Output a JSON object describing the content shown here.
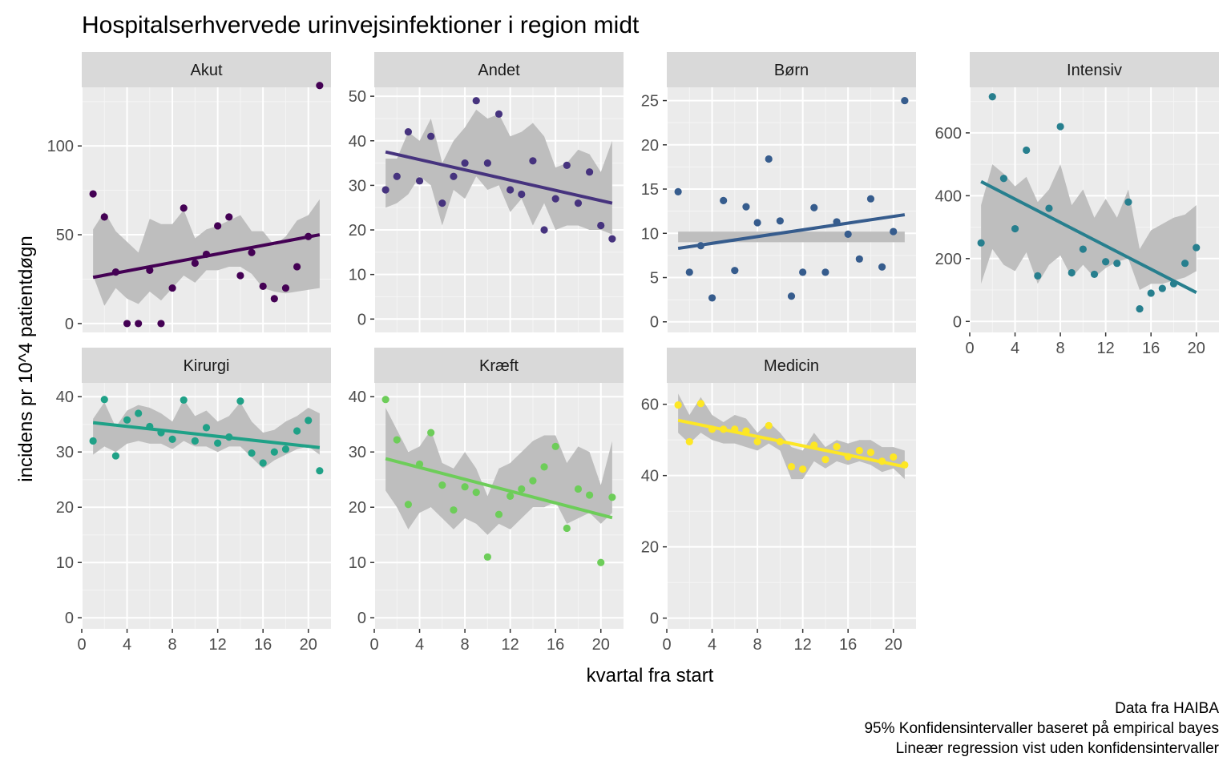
{
  "chart_data": {
    "type": "scatter",
    "title": "Hospitalserhvervede urinvejsinfektioner i region midt",
    "xlabel": "kvartal fra start",
    "ylabel": "incidens pr 10^4 patientdøgn",
    "caption": [
      "Data fra HAIBA",
      "95% Konfidensintervaller baseret på empirical bayes",
      "Lineær regression vist uden konfidensintervaller"
    ],
    "grid": true,
    "legend": "none",
    "facets": [
      {
        "name": "Akut",
        "color": "#440154",
        "xlim": [
          0,
          22
        ],
        "ylim": [
          -5,
          133
        ],
        "x_ticks": [
          0,
          4,
          8,
          12,
          16,
          20
        ],
        "y_ticks": [
          0,
          50,
          100
        ],
        "x": [
          1,
          2,
          3,
          4,
          5,
          6,
          7,
          8,
          9,
          10,
          11,
          12,
          13,
          14,
          15,
          16,
          17,
          18,
          19,
          20,
          21
        ],
        "y": [
          73,
          60,
          29,
          0,
          0,
          30,
          0,
          20,
          65,
          34,
          39,
          55,
          60,
          27,
          40,
          21,
          14,
          20,
          32,
          49,
          134
        ],
        "ci_low": [
          27,
          10,
          20,
          14,
          11,
          18,
          13,
          20,
          27,
          23,
          30,
          30,
          32,
          32,
          28,
          20,
          18,
          17,
          18,
          19,
          20
        ],
        "ci_high": [
          53,
          63,
          52,
          46,
          40,
          59,
          56,
          56,
          64,
          48,
          53,
          55,
          58,
          61,
          52,
          52,
          44,
          49,
          58,
          61,
          70
        ],
        "trend": [
          [
            1,
            26
          ],
          [
            21,
            50
          ]
        ]
      },
      {
        "name": "Andet",
        "color": "#46337E",
        "xlim": [
          0,
          22
        ],
        "ylim": [
          -3,
          52
        ],
        "x_ticks": [
          0,
          4,
          8,
          12,
          16,
          20
        ],
        "y_ticks": [
          0,
          10,
          20,
          30,
          40,
          50
        ],
        "x": [
          1,
          2,
          3,
          4,
          5,
          6,
          7,
          8,
          9,
          10,
          11,
          12,
          13,
          14,
          15,
          16,
          17,
          18,
          19,
          20,
          21
        ],
        "y": [
          29,
          32,
          42,
          31,
          41,
          26,
          32,
          35,
          49,
          35,
          46,
          29,
          28,
          35.5,
          20,
          27,
          34.5,
          26,
          33,
          21,
          18
        ],
        "ci_low": [
          25,
          26,
          28,
          32,
          30,
          21,
          29,
          27,
          32,
          29,
          30,
          24,
          27,
          21,
          26,
          20,
          21,
          21,
          20,
          20,
          19
        ],
        "ci_high": [
          36,
          36,
          42,
          40,
          45,
          35,
          40,
          43,
          47,
          45,
          46,
          41,
          42,
          44,
          41,
          34,
          35,
          38,
          37,
          33,
          40
        ],
        "trend": [
          [
            1,
            37.5
          ],
          [
            21,
            26
          ]
        ]
      },
      {
        "name": "Børn",
        "color": "#365C8D",
        "xlim": [
          0,
          22
        ],
        "ylim": [
          -1.2,
          26.5
        ],
        "x_ticks": [
          0,
          4,
          8,
          12,
          16,
          20
        ],
        "y_ticks": [
          0,
          5,
          10,
          15,
          20,
          25
        ],
        "x": [
          1,
          2,
          3,
          4,
          5,
          6,
          7,
          8,
          9,
          10,
          11,
          12,
          13,
          14,
          15,
          16,
          17,
          18,
          19,
          20,
          21
        ],
        "y": [
          14.7,
          5.6,
          8.6,
          2.7,
          13.7,
          5.8,
          13,
          11.2,
          18.4,
          11.4,
          2.9,
          5.6,
          12.9,
          5.6,
          11.3,
          9.9,
          7.1,
          13.9,
          6.2,
          10.2,
          25
        ],
        "ci_low": [
          9,
          9,
          9,
          9,
          9,
          9,
          9,
          9,
          9,
          9,
          9,
          9,
          9,
          9,
          9,
          9,
          9,
          9,
          9,
          9,
          9
        ],
        "ci_high": [
          10.2,
          10.2,
          10.2,
          10.2,
          10.2,
          10.2,
          10.2,
          10.2,
          10.2,
          10.2,
          10.2,
          10.2,
          10.2,
          10.2,
          10.2,
          10.2,
          10.2,
          10.2,
          10.2,
          10.2,
          10.2
        ],
        "trend": [
          [
            1,
            8.3
          ],
          [
            21,
            12.1
          ]
        ]
      },
      {
        "name": "Intensiv",
        "color": "#277F8E",
        "xlim": [
          0,
          22
        ],
        "ylim": [
          -35,
          745
        ],
        "x_ticks": [
          0,
          4,
          8,
          12,
          16,
          20
        ],
        "y_ticks": [
          0,
          200,
          400,
          600
        ],
        "x": [
          1,
          2,
          3,
          4,
          5,
          6,
          7,
          8,
          9,
          10,
          11,
          12,
          13,
          14,
          15,
          16,
          17,
          18,
          19,
          20
        ],
        "y": [
          250,
          715,
          455,
          295,
          545,
          145,
          360,
          620,
          155,
          230,
          150,
          190,
          185,
          380,
          40,
          90,
          105,
          120,
          185,
          235
        ],
        "ci_low": [
          120,
          230,
          180,
          160,
          220,
          120,
          180,
          210,
          140,
          180,
          140,
          170,
          190,
          200,
          100,
          120,
          120,
          130,
          140,
          160
        ],
        "ci_high": [
          370,
          500,
          470,
          430,
          460,
          380,
          420,
          500,
          370,
          420,
          330,
          390,
          330,
          420,
          230,
          290,
          310,
          330,
          340,
          370
        ],
        "trend": [
          [
            1,
            445
          ],
          [
            20,
            92
          ]
        ]
      },
      {
        "name": "Kirurgi",
        "color": "#1FA187",
        "xlim": [
          0,
          22
        ],
        "ylim": [
          -2,
          42.5
        ],
        "x_ticks": [
          0,
          4,
          8,
          12,
          16,
          20
        ],
        "y_ticks": [
          0,
          10,
          20,
          30,
          40
        ],
        "x": [
          1,
          2,
          3,
          4,
          5,
          6,
          7,
          8,
          9,
          10,
          11,
          12,
          13,
          14,
          15,
          16,
          17,
          18,
          19,
          20,
          21
        ],
        "y": [
          32,
          39.5,
          29.3,
          35.8,
          37,
          34.6,
          33.5,
          32.3,
          39.4,
          32,
          34.4,
          31.6,
          32.7,
          39.2,
          29.8,
          28,
          30,
          30.5,
          33.8,
          35.7,
          26.6
        ],
        "ci_low": [
          29.5,
          31,
          30,
          31.5,
          32,
          31.5,
          31.5,
          30.5,
          32,
          31,
          31,
          30,
          31,
          31,
          29,
          27,
          28.5,
          29.5,
          30.5,
          31,
          29.5
        ],
        "ci_high": [
          36,
          39,
          34.5,
          37.5,
          38.5,
          38,
          37,
          35.5,
          39.5,
          36.5,
          37.5,
          35.5,
          36.5,
          39,
          35.5,
          33.5,
          34,
          35.5,
          36.5,
          38,
          37
        ],
        "trend": [
          [
            1,
            35.3
          ],
          [
            21,
            30.8
          ]
        ]
      },
      {
        "name": "Kræft",
        "color": "#6DCD59",
        "xlim": [
          0,
          22
        ],
        "ylim": [
          -2,
          42.5
        ],
        "x_ticks": [
          0,
          4,
          8,
          12,
          16,
          20
        ],
        "y_ticks": [
          0,
          10,
          20,
          30,
          40
        ],
        "x": [
          1,
          2,
          3,
          4,
          5,
          6,
          7,
          8,
          9,
          10,
          11,
          12,
          13,
          14,
          15,
          16,
          17,
          18,
          19,
          20,
          21
        ],
        "y": [
          39.5,
          32.2,
          20.5,
          27.8,
          33.5,
          24,
          19.5,
          23.7,
          22.7,
          11,
          18.7,
          22,
          23.3,
          24.8,
          27.3,
          31,
          16.2,
          23.3,
          22.2,
          10,
          21.8
        ],
        "ci_low": [
          23,
          20,
          16,
          19,
          20,
          18,
          16,
          18,
          17,
          15,
          17,
          16,
          18,
          20,
          20,
          21,
          17,
          18,
          19,
          17,
          19
        ],
        "ci_high": [
          38,
          34,
          30,
          31,
          34,
          28,
          27,
          30,
          27,
          22,
          27,
          28,
          30,
          32,
          33,
          33,
          28,
          31,
          30,
          24,
          32
        ],
        "trend": [
          [
            1,
            28.8
          ],
          [
            21,
            18.1
          ]
        ]
      },
      {
        "name": "Medicin",
        "color": "#FDE725",
        "xlim": [
          0,
          22
        ],
        "ylim": [
          -3,
          66
        ],
        "x_ticks": [
          0,
          4,
          8,
          12,
          16,
          20
        ],
        "y_ticks": [
          0,
          20,
          40,
          60
        ],
        "x": [
          1,
          2,
          3,
          4,
          5,
          6,
          7,
          8,
          9,
          10,
          11,
          12,
          13,
          14,
          15,
          16,
          17,
          18,
          19,
          20,
          21
        ],
        "y": [
          59.8,
          49.5,
          60.2,
          53,
          53,
          53,
          52.5,
          49.5,
          54,
          49.5,
          42.5,
          41.8,
          48.5,
          44.5,
          48.1,
          45.3,
          47,
          46.5,
          44,
          45.2,
          43
        ],
        "ci_low": [
          52,
          49,
          52,
          50,
          49,
          49,
          48,
          47,
          49,
          47,
          39,
          39,
          44,
          42,
          44,
          43,
          44,
          43,
          41,
          42,
          39
        ],
        "ci_high": [
          63,
          57,
          62,
          57,
          55,
          57,
          56,
          52,
          55,
          52,
          48,
          47,
          52,
          48,
          50,
          49,
          50,
          50,
          48,
          48,
          47
        ],
        "trend": [
          [
            1,
            55.5
          ],
          [
            21,
            42.5
          ]
        ]
      }
    ]
  }
}
